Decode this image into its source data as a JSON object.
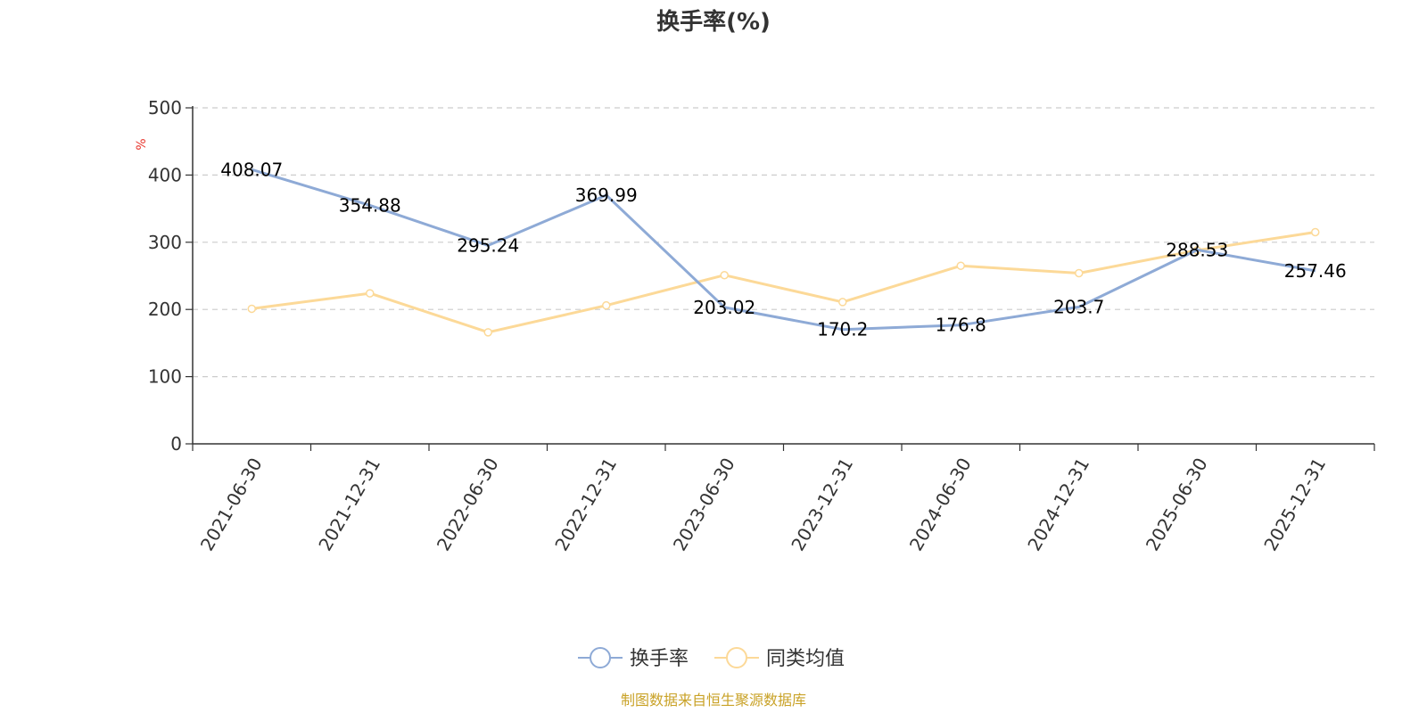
{
  "chart_data": {
    "type": "line",
    "title": "换手率(%)",
    "ylabel": "%",
    "ylim": [
      0,
      500
    ],
    "yticks": [
      0,
      100,
      200,
      300,
      400,
      500
    ],
    "grid": true,
    "legend_position": "bottom-center",
    "categories": [
      "2021-06-30",
      "2021-12-31",
      "2022-06-30",
      "2022-12-31",
      "2023-06-30",
      "2023-12-31",
      "2024-06-30",
      "2024-12-31",
      "2025-06-30",
      "2025-12-31"
    ],
    "series": [
      {
        "name": "换手率",
        "color": "#8eaad6",
        "values": [
          408.07,
          354.88,
          295.24,
          369.99,
          203.02,
          170.2,
          176.8,
          203.7,
          288.53,
          257.46
        ],
        "labels": [
          "408.07",
          "354.88",
          "295.24",
          "369.99",
          "203.02",
          "170.2",
          "176.8",
          "203.7",
          "288.53",
          "257.46"
        ]
      },
      {
        "name": "同类均值",
        "color": "#fcd998",
        "values": [
          201,
          224,
          166,
          206,
          251,
          211,
          265,
          254,
          288,
          315
        ]
      }
    ],
    "source_note": "制图数据来自恒生聚源数据库",
    "ylabel_color": "#e8352d",
    "source_color": "#c9a227"
  }
}
